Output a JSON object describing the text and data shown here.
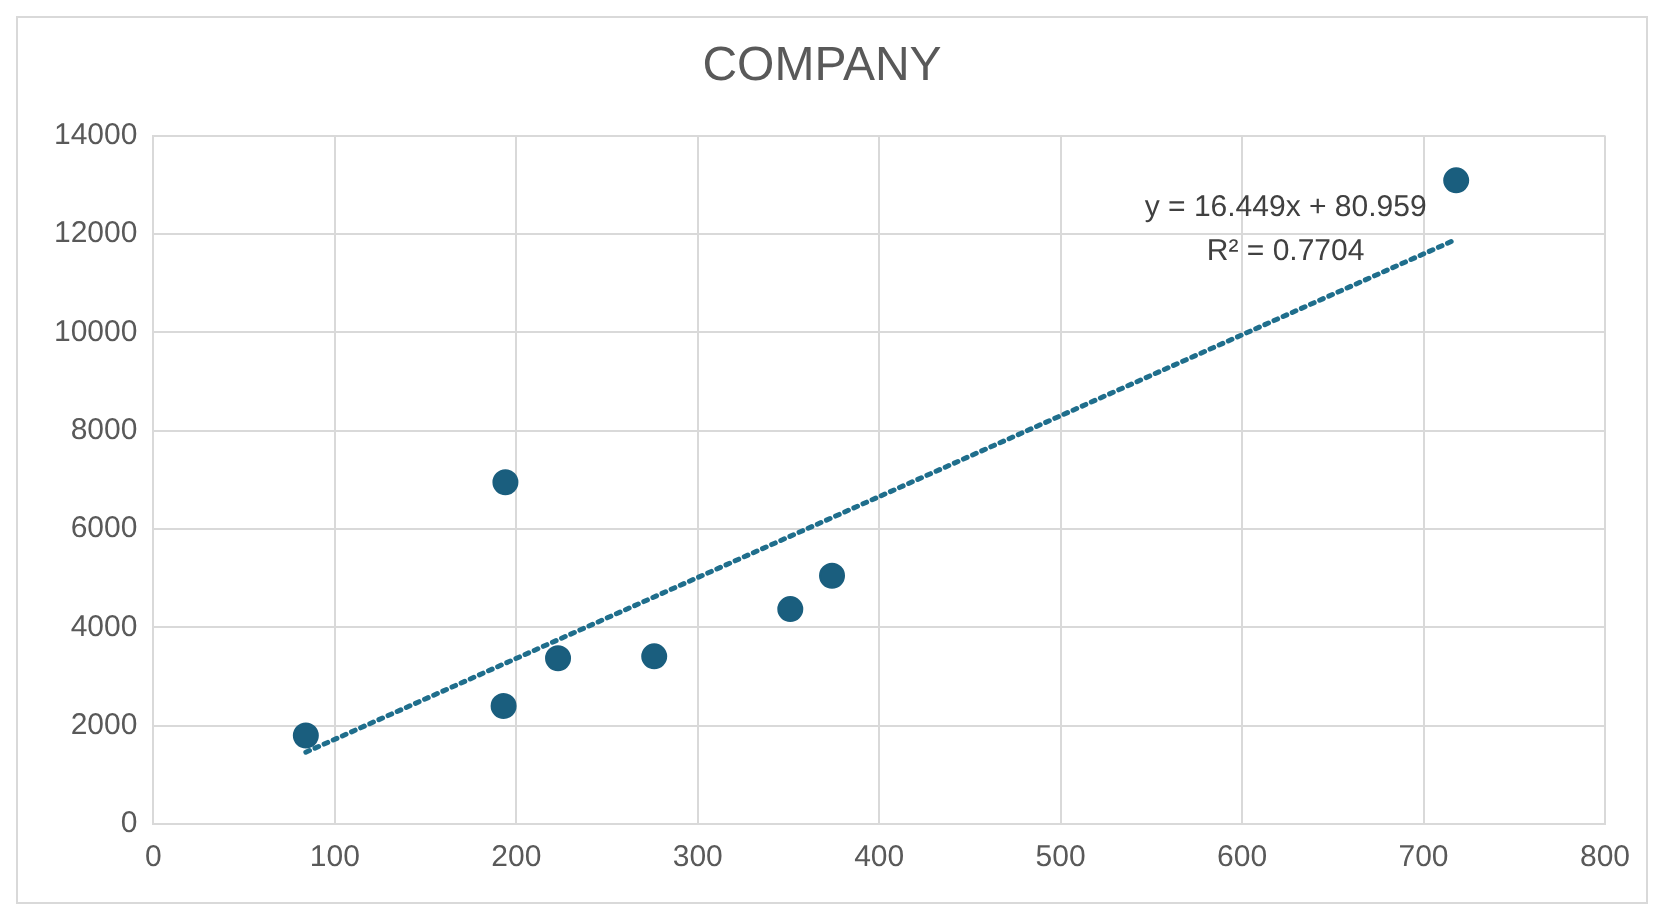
{
  "chart_data": {
    "type": "scatter",
    "title": "COMPANY",
    "grid": true,
    "legend": false,
    "xlim": [
      0,
      800
    ],
    "xticks": [
      0,
      100,
      200,
      300,
      400,
      500,
      600,
      700,
      800
    ],
    "ylim": [
      0,
      14000
    ],
    "yticks": [
      0,
      2000,
      4000,
      6000,
      8000,
      10000,
      12000,
      14000
    ],
    "series": [
      {
        "color": "#1a5e7e",
        "marker": "circle",
        "x": [
          84,
          193,
          194,
          223,
          276,
          351,
          374,
          718
        ],
        "values": [
          1800,
          2400,
          6950,
          3370,
          3410,
          4370,
          5050,
          13090
        ]
      },
      {
        "type": "line",
        "color": "#1f6e8c",
        "marker": "none",
        "line_style": "dotted",
        "x": [
          84,
          718
        ],
        "values": [
          1460,
          11890
        ]
      }
    ],
    "annotations": [
      "y = 16.449x + 80.959",
      "R² = 0.7704"
    ]
  }
}
